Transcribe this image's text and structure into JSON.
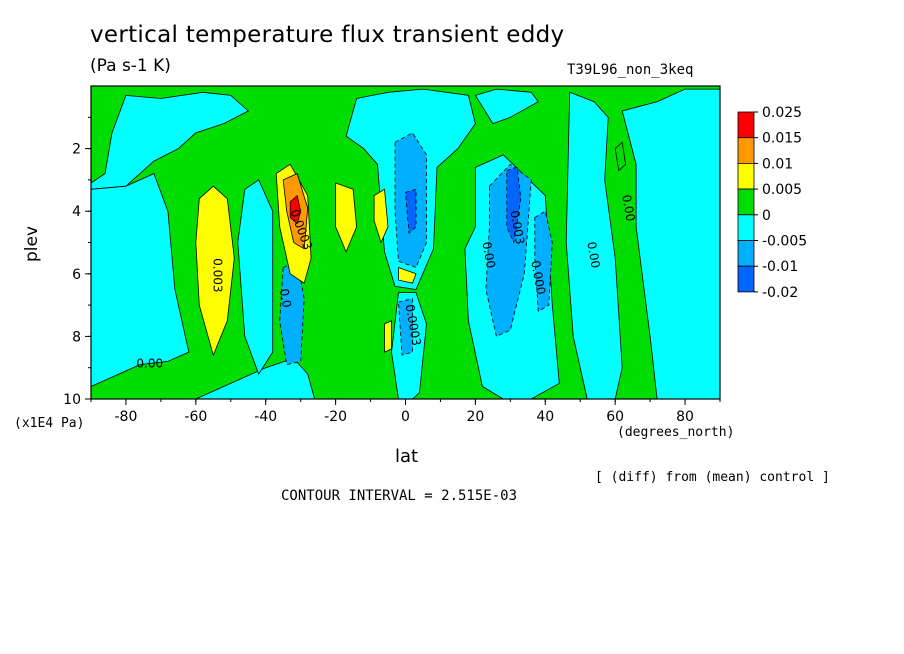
{
  "title": "vertical temperature flux transient eddy",
  "units": "(Pa s-1 K)",
  "run_label": "T39L96_non_3keq",
  "diff_note": "[ (diff) from (mean) control ]",
  "contour_interval": "CONTOUR INTERVAL = 2.515E-03",
  "chart_data": {
    "type": "heatmap",
    "title": "vertical temperature flux transient eddy",
    "xlabel": "lat",
    "ylabel": "plev",
    "x_unit": "(degrees_north)",
    "y_unit": "(x1E4 Pa)",
    "xlim": [
      -90,
      90
    ],
    "ylim": [
      10,
      0
    ],
    "x_ticks": [
      "-80",
      "-60",
      "-40",
      "-20",
      "0",
      "20",
      "40",
      "60",
      "80"
    ],
    "x_tick_values": [
      -80,
      -60,
      -40,
      -20,
      0,
      20,
      40,
      60,
      80
    ],
    "y_ticks": [
      "2",
      "4",
      "6",
      "8",
      "10"
    ],
    "y_tick_values": [
      2,
      4,
      6,
      8,
      10
    ],
    "colorbar": {
      "labels": [
        "0.025",
        "0.015",
        "0.01",
        "0.005",
        "0",
        "-0.005",
        "-0.01",
        "-0.02"
      ],
      "colors": [
        "#ff0000",
        "#ff9900",
        "#ffff00",
        "#00dd00",
        "#00ffff",
        "#00b0ff",
        "#0066ff"
      ]
    },
    "features": [
      {
        "lat_range": [
          -90,
          90
        ],
        "plev_range": [
          0,
          10
        ],
        "value_class": "0 to 0.005",
        "color": "#00dd00"
      },
      {
        "lat_range": [
          -62,
          -48
        ],
        "plev_range": [
          3.5,
          8.5
        ],
        "value_class": "0.005 to 0.01",
        "color": "#ffff00"
      },
      {
        "lat_range": [
          -37,
          -27
        ],
        "plev_range": [
          2.5,
          6.2
        ],
        "value_class": "0.005 to 0.01",
        "color": "#ffff00"
      },
      {
        "lat_range": [
          -35,
          -28
        ],
        "plev_range": [
          2.8,
          5.5
        ],
        "value_class": "0.01 to 0.015",
        "color": "#ff9900"
      },
      {
        "lat_range": [
          -33,
          -30
        ],
        "plev_range": [
          3.5,
          4.5
        ],
        "value_class": "0.015 to 0.025",
        "color": "#ff0000"
      },
      {
        "lat_range": [
          -3,
          6
        ],
        "plev_range": [
          1.5,
          6.5
        ],
        "value_class": "-0.005 to -0.01",
        "color": "#00b0ff"
      },
      {
        "lat_range": [
          24,
          38
        ],
        "plev_range": [
          2.5,
          8.0
        ],
        "value_class": "-0.005 to -0.01",
        "color": "#00b0ff"
      },
      {
        "lat_range": [
          -38,
          -30
        ],
        "plev_range": [
          5.5,
          9.0
        ],
        "value_class": "-0.005 to -0.01",
        "color": "#00b0ff"
      },
      {
        "lat_range": [
          -20,
          -4
        ],
        "plev_range": [
          3.0,
          5.3
        ],
        "value_class": "0.005 to 0.01",
        "color": "#ffff00"
      }
    ],
    "contour_labels": [
      "0.00",
      "0.003",
      "0.0003",
      "0.0",
      "0.0003",
      "0.003",
      "0.00",
      "0.000",
      "0.00",
      "0.00"
    ]
  }
}
